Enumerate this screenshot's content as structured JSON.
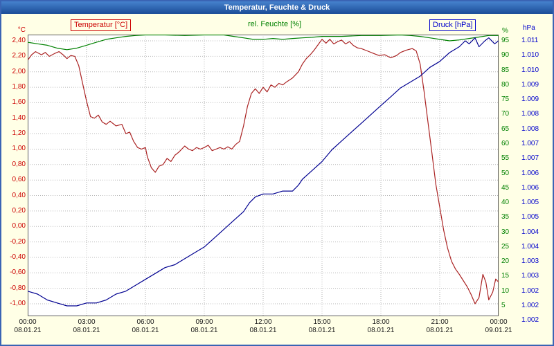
{
  "title": "Temperatur, Feuchte & Druck",
  "legend": {
    "temperature": "Temperatur [°C]",
    "humidity": "rel. Feuchte [%]",
    "pressure": "Druck [hPa]"
  },
  "colors": {
    "temperature": "#aa2222",
    "humidity": "#008000",
    "pressure": "#000090",
    "background": "#ffffe6",
    "frame": "#3a64b4",
    "grid": "#b6b6b6"
  },
  "chart_data": {
    "type": "line",
    "title": "Temperatur, Feuchte & Druck",
    "x_range_hours": [
      0,
      24
    ],
    "grid": "dotted",
    "x_ticks": {
      "times": [
        "00:00",
        "03:00",
        "06:00",
        "09:00",
        "12:00",
        "15:00",
        "18:00",
        "21:00",
        "00:00"
      ],
      "dates": [
        "08.01.21",
        "08.01.21",
        "08.01.21",
        "08.01.21",
        "08.01.21",
        "08.01.21",
        "08.01.21",
        "08.01.21",
        "09.01.21"
      ]
    },
    "axes": {
      "temperature": {
        "unit": "°C",
        "max": 2.4,
        "min": -1.0,
        "step": 0.2,
        "labels": [
          "2,40",
          "2,20",
          "2,00",
          "1,80",
          "1,60",
          "1,40",
          "1,20",
          "1,00",
          "0,80",
          "0,60",
          "0,40",
          "0,20",
          "0,00",
          "-0,20",
          "-0,40",
          "-0,60",
          "-0,80",
          "-1,00"
        ]
      },
      "humidity": {
        "unit": "%",
        "max": 95,
        "min": 5,
        "step": 5,
        "labels": [
          "95",
          "90",
          "85",
          "80",
          "75",
          "70",
          "65",
          "60",
          "55",
          "50",
          "45",
          "40",
          "35",
          "30",
          "25",
          "20",
          "15",
          "10",
          "5"
        ]
      },
      "pressure": {
        "unit": "hPa",
        "max": 1.011,
        "min": 1.0015,
        "step": 0.0005,
        "labels": [
          "1.011",
          "1.010",
          "1.010",
          "1.009",
          "1.009",
          "1.008",
          "1.008",
          "1.007",
          "1.007",
          "1.006",
          "1.006",
          "1.005",
          "1.005",
          "1.004",
          "1.004",
          "1.003",
          "1.003",
          "1.002",
          "1.002",
          "1.002"
        ]
      }
    },
    "series": [
      {
        "name": "Temperatur",
        "axis": "temperature",
        "points": [
          [
            0,
            2.15
          ],
          [
            0.2,
            2.22
          ],
          [
            0.4,
            2.26
          ],
          [
            0.7,
            2.22
          ],
          [
            0.9,
            2.25
          ],
          [
            1.1,
            2.2
          ],
          [
            1.4,
            2.24
          ],
          [
            1.6,
            2.26
          ],
          [
            1.8,
            2.22
          ],
          [
            2,
            2.17
          ],
          [
            2.2,
            2.21
          ],
          [
            2.4,
            2.2
          ],
          [
            2.6,
            2.08
          ],
          [
            2.8,
            1.85
          ],
          [
            3,
            1.62
          ],
          [
            3.2,
            1.42
          ],
          [
            3.4,
            1.4
          ],
          [
            3.6,
            1.44
          ],
          [
            3.8,
            1.35
          ],
          [
            4,
            1.32
          ],
          [
            4.2,
            1.36
          ],
          [
            4.5,
            1.3
          ],
          [
            4.8,
            1.32
          ],
          [
            5,
            1.2
          ],
          [
            5.2,
            1.22
          ],
          [
            5.4,
            1.1
          ],
          [
            5.6,
            1.02
          ],
          [
            5.8,
            1.0
          ],
          [
            6,
            1.02
          ],
          [
            6.1,
            0.9
          ],
          [
            6.3,
            0.76
          ],
          [
            6.5,
            0.7
          ],
          [
            6.7,
            0.78
          ],
          [
            6.9,
            0.8
          ],
          [
            7.1,
            0.88
          ],
          [
            7.3,
            0.84
          ],
          [
            7.5,
            0.92
          ],
          [
            7.7,
            0.96
          ],
          [
            8,
            1.04
          ],
          [
            8.2,
            1.0
          ],
          [
            8.4,
            0.98
          ],
          [
            8.6,
            1.02
          ],
          [
            8.8,
            1.0
          ],
          [
            9,
            1.02
          ],
          [
            9.2,
            1.05
          ],
          [
            9.4,
            0.98
          ],
          [
            9.6,
            1.0
          ],
          [
            9.8,
            1.02
          ],
          [
            10,
            1.0
          ],
          [
            10.2,
            1.03
          ],
          [
            10.4,
            1.0
          ],
          [
            10.6,
            1.06
          ],
          [
            10.8,
            1.1
          ],
          [
            11,
            1.3
          ],
          [
            11.2,
            1.55
          ],
          [
            11.4,
            1.72
          ],
          [
            11.6,
            1.78
          ],
          [
            11.8,
            1.72
          ],
          [
            12,
            1.8
          ],
          [
            12.2,
            1.74
          ],
          [
            12.4,
            1.83
          ],
          [
            12.6,
            1.8
          ],
          [
            12.8,
            1.85
          ],
          [
            13,
            1.83
          ],
          [
            13.2,
            1.87
          ],
          [
            13.5,
            1.92
          ],
          [
            13.8,
            2.0
          ],
          [
            14,
            2.1
          ],
          [
            14.2,
            2.17
          ],
          [
            14.4,
            2.22
          ],
          [
            14.6,
            2.28
          ],
          [
            14.8,
            2.35
          ],
          [
            15,
            2.42
          ],
          [
            15.2,
            2.37
          ],
          [
            15.4,
            2.42
          ],
          [
            15.6,
            2.36
          ],
          [
            15.8,
            2.39
          ],
          [
            16,
            2.41
          ],
          [
            16.2,
            2.36
          ],
          [
            16.4,
            2.39
          ],
          [
            16.6,
            2.34
          ],
          [
            16.8,
            2.31
          ],
          [
            17,
            2.3
          ],
          [
            17.3,
            2.27
          ],
          [
            17.6,
            2.24
          ],
          [
            17.9,
            2.21
          ],
          [
            18.2,
            2.22
          ],
          [
            18.5,
            2.18
          ],
          [
            18.8,
            2.21
          ],
          [
            19,
            2.25
          ],
          [
            19.3,
            2.28
          ],
          [
            19.6,
            2.3
          ],
          [
            19.8,
            2.27
          ],
          [
            20,
            2.1
          ],
          [
            20.2,
            1.75
          ],
          [
            20.4,
            1.35
          ],
          [
            20.6,
            0.95
          ],
          [
            20.8,
            0.55
          ],
          [
            21,
            0.25
          ],
          [
            21.2,
            -0.05
          ],
          [
            21.4,
            -0.28
          ],
          [
            21.6,
            -0.45
          ],
          [
            21.8,
            -0.55
          ],
          [
            22,
            -0.62
          ],
          [
            22.2,
            -0.7
          ],
          [
            22.4,
            -0.78
          ],
          [
            22.6,
            -0.88
          ],
          [
            22.8,
            -1.0
          ],
          [
            23,
            -0.92
          ],
          [
            23.2,
            -0.62
          ],
          [
            23.35,
            -0.72
          ],
          [
            23.5,
            -0.95
          ],
          [
            23.7,
            -0.85
          ],
          [
            23.85,
            -0.68
          ],
          [
            24,
            -0.72
          ]
        ]
      },
      {
        "name": "rel. Feuchte",
        "axis": "humidity",
        "points": [
          [
            0,
            94.5
          ],
          [
            0.5,
            94
          ],
          [
            1,
            93.5
          ],
          [
            1.5,
            92.5
          ],
          [
            2,
            92
          ],
          [
            2.5,
            92.5
          ],
          [
            3,
            93.5
          ],
          [
            3.5,
            94.5
          ],
          [
            4,
            95.5
          ],
          [
            4.5,
            96
          ],
          [
            5,
            96.5
          ],
          [
            5.5,
            96.8
          ],
          [
            6,
            97
          ],
          [
            7,
            97
          ],
          [
            8,
            96.8
          ],
          [
            9,
            97
          ],
          [
            10,
            97
          ],
          [
            10.5,
            96.5
          ],
          [
            11,
            96
          ],
          [
            11.5,
            95.5
          ],
          [
            12,
            95.5
          ],
          [
            12.5,
            95.8
          ],
          [
            13,
            95.5
          ],
          [
            13.5,
            95.8
          ],
          [
            14,
            96
          ],
          [
            14.5,
            96.2
          ],
          [
            15,
            96.5
          ],
          [
            16,
            96.5
          ],
          [
            17,
            96.8
          ],
          [
            18,
            96.8
          ],
          [
            19,
            97
          ],
          [
            19.5,
            96.8
          ],
          [
            20,
            96.5
          ],
          [
            20.5,
            96
          ],
          [
            21,
            95.5
          ],
          [
            21.5,
            95
          ],
          [
            22,
            95.3
          ],
          [
            22.5,
            95.8
          ],
          [
            23,
            96.3
          ],
          [
            23.5,
            96.8
          ],
          [
            24,
            96.8
          ]
        ]
      },
      {
        "name": "Druck",
        "axis": "pressure",
        "points": [
          [
            0,
            1.0025
          ],
          [
            0.5,
            1.0024
          ],
          [
            1,
            1.0022
          ],
          [
            1.5,
            1.0021
          ],
          [
            2,
            1.002
          ],
          [
            2.5,
            1.002
          ],
          [
            3,
            1.0021
          ],
          [
            3.5,
            1.0021
          ],
          [
            4,
            1.0022
          ],
          [
            4.5,
            1.0024
          ],
          [
            5,
            1.0025
          ],
          [
            5.5,
            1.0027
          ],
          [
            6,
            1.0029
          ],
          [
            6.5,
            1.0031
          ],
          [
            7,
            1.0033
          ],
          [
            7.5,
            1.0034
          ],
          [
            8,
            1.0036
          ],
          [
            8.5,
            1.0038
          ],
          [
            9,
            1.004
          ],
          [
            9.5,
            1.0043
          ],
          [
            10,
            1.0046
          ],
          [
            10.5,
            1.0049
          ],
          [
            11,
            1.0052
          ],
          [
            11.3,
            1.0055
          ],
          [
            11.6,
            1.0057
          ],
          [
            12,
            1.0058
          ],
          [
            12.5,
            1.0058
          ],
          [
            13,
            1.0059
          ],
          [
            13.5,
            1.0059
          ],
          [
            13.8,
            1.0061
          ],
          [
            14,
            1.0063
          ],
          [
            14.5,
            1.0066
          ],
          [
            15,
            1.0069
          ],
          [
            15.5,
            1.0073
          ],
          [
            16,
            1.0076
          ],
          [
            16.5,
            1.0079
          ],
          [
            17,
            1.0082
          ],
          [
            17.5,
            1.0085
          ],
          [
            18,
            1.0088
          ],
          [
            18.5,
            1.0091
          ],
          [
            19,
            1.0094
          ],
          [
            19.5,
            1.0096
          ],
          [
            20,
            1.0098
          ],
          [
            20.5,
            1.0101
          ],
          [
            21,
            1.0103
          ],
          [
            21.5,
            1.0106
          ],
          [
            22,
            1.0108
          ],
          [
            22.3,
            1.011
          ],
          [
            22.5,
            1.0109
          ],
          [
            22.8,
            1.0111
          ],
          [
            23,
            1.0108
          ],
          [
            23.3,
            1.011
          ],
          [
            23.5,
            1.0111
          ],
          [
            23.8,
            1.0109
          ],
          [
            24,
            1.011
          ]
        ]
      }
    ]
  }
}
